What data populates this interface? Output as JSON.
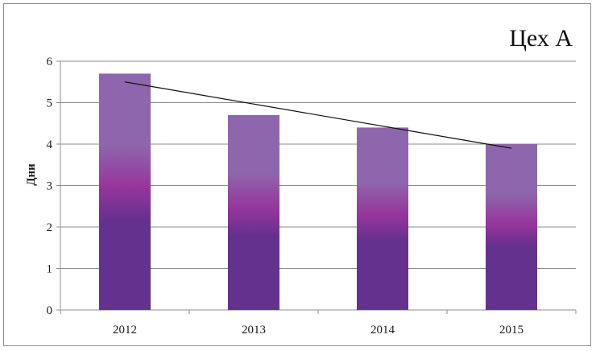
{
  "chart_data": {
    "type": "bar",
    "title": "Цех А",
    "xlabel": "",
    "ylabel": "Дни",
    "categories": [
      "2012",
      "2013",
      "2014",
      "2015"
    ],
    "values": [
      5.7,
      4.7,
      4.4,
      4.0
    ],
    "ylim": [
      0,
      6
    ],
    "yticks": [
      0,
      1,
      2,
      3,
      4,
      5,
      6
    ],
    "grid": true,
    "legend": "none",
    "trendline": {
      "type": "linear",
      "start": 5.5,
      "end": 3.9
    },
    "colors": {
      "bar_top": "#8e66ad",
      "bar_mid": "#96359c",
      "bar_bottom": "#65318e",
      "trendline": "#111111",
      "gridline": "#8c8c8c"
    }
  }
}
